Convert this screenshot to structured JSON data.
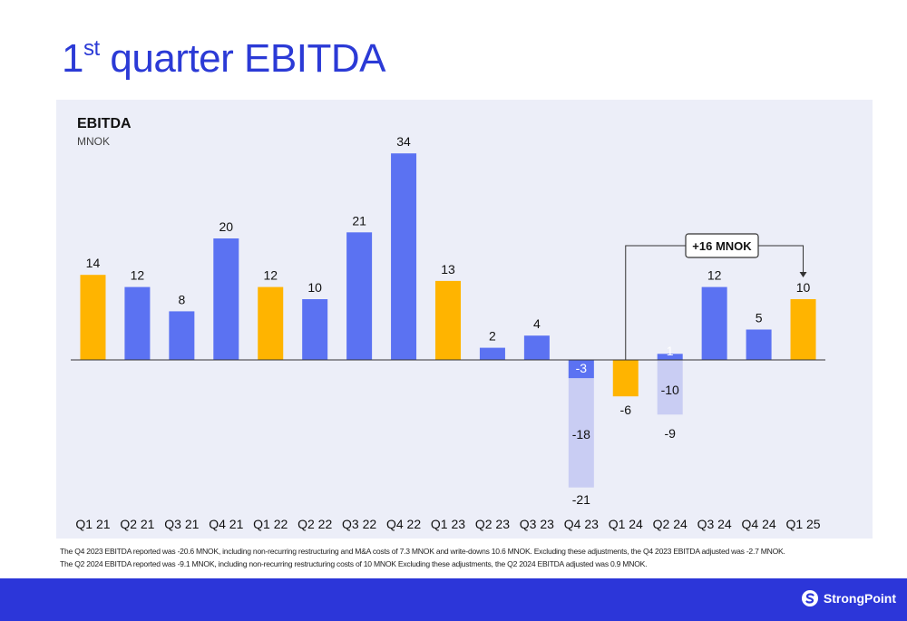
{
  "page": {
    "title_number": "1",
    "title_suffix": "st",
    "title_rest": " quarter EBITDA"
  },
  "colors": {
    "title": "#2b3ad6",
    "blue_bar": "#5b72f2",
    "yellow_bar": "#ffb400",
    "adjustment_bar": "#c9cdf3",
    "panel": "#eceef8",
    "footer": "#2c36d9"
  },
  "chart_data": {
    "type": "bar",
    "title": "EBITDA",
    "ylabel": "MNOK",
    "categories": [
      "Q1 21",
      "Q2 21",
      "Q3 21",
      "Q4 21",
      "Q1 22",
      "Q2 22",
      "Q3 22",
      "Q4 22",
      "Q1 23",
      "Q2 23",
      "Q3 23",
      "Q4 23",
      "Q1 24",
      "Q2 24",
      "Q3 24",
      "Q4 24",
      "Q1 25"
    ],
    "values": [
      14,
      12,
      8,
      20,
      12,
      10,
      21,
      34,
      13,
      2,
      4,
      -3,
      -6,
      1,
      12,
      5,
      10
    ],
    "value_labels": [
      "14",
      "12",
      "8",
      "20",
      "12",
      "10",
      "21",
      "34",
      "13",
      "2",
      "4",
      "-3",
      "-6",
      "1",
      "12",
      "5",
      "10"
    ],
    "highlight_q1": [
      true,
      false,
      false,
      false,
      true,
      false,
      false,
      false,
      true,
      false,
      false,
      false,
      true,
      false,
      false,
      false,
      true
    ],
    "adjustments": [
      {
        "category": "Q4 23",
        "reported": -21,
        "reported_label": "-21",
        "adjustment": -18,
        "adjustment_label": "-18"
      },
      {
        "category": "Q2 24",
        "reported": -9,
        "reported_label": "-9",
        "adjustment": -10,
        "adjustment_label": "-10"
      }
    ],
    "ylim": [
      -25,
      36
    ],
    "annotation": {
      "text": "+16 MNOK",
      "from": "Q1 24",
      "to": "Q1 25"
    },
    "grid": false,
    "legend": "none"
  },
  "footnotes": [
    "The Q4 2023 EBITDA reported was -20.6 MNOK, including non-recurring restructuring and M&A costs of 7.3 MNOK and write-downs 10.6 MNOK. Excluding these adjustments, the Q4 2023 EBITDA adjusted was -2.7 MNOK.",
    "The Q2 2024 EBITDA reported was -9.1 MNOK, including non-recurring restructuring costs of 10 MNOK Excluding these adjustments, the Q2 2024 EBITDA adjusted was 0.9 MNOK."
  ],
  "logo": {
    "text": "StrongPoint",
    "icon": "strongpoint-logo-icon"
  }
}
